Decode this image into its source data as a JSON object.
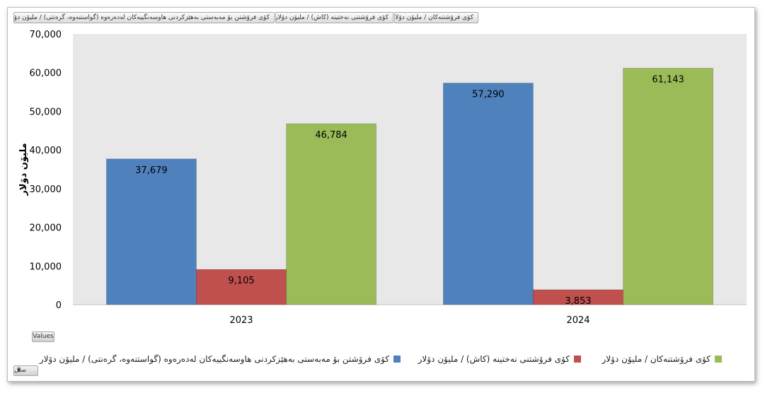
{
  "filter_buttons": [
    "کۆی فرۆشتنەکان / ملیۆن دۆلار",
    "کۆی فرۆشتنی نەختینە (کاش) / ملیۆن دۆلار",
    "کۆی فرۆشتن بۆ مەبەستی بەهێزکردنی هاوسەنگییەکان لەدەرەوە (گواستنەوە، گرەنتی) / ملیۆن دۆلار"
  ],
  "values_button": "Values",
  "axis_field_button": "سال",
  "chart_data": {
    "type": "bar",
    "categories": [
      "2023",
      "2024"
    ],
    "series": [
      {
        "name": "کۆی فرۆشتن بۆ مەبەستی بەهێزکردنی هاوسەنگییەکان لەدەرەوە (گواستنەوە، گرەنتی) / ملیۆن دۆلار",
        "color": "#4f81bd",
        "values": [
          37679,
          57290
        ]
      },
      {
        "name": "کۆی فرۆشتنی نەختینە (کاش) / ملیۆن دۆلار",
        "color": "#c0504d",
        "values": [
          9105,
          3853
        ]
      },
      {
        "name": "کۆی فرۆشتنەکان / ملیۆن دۆلار",
        "color": "#9bbb59",
        "values": [
          46784,
          61143
        ]
      }
    ],
    "data_labels": [
      [
        "37,679",
        "57,290"
      ],
      [
        "9,105",
        "3,853"
      ],
      [
        "46,784",
        "61,143"
      ]
    ],
    "ylabel": "ملیۆن دۆلار",
    "ylim": [
      0,
      70000
    ],
    "yticks": [
      "0",
      "10,000",
      "20,000",
      "30,000",
      "40,000",
      "50,000",
      "60,000",
      "70,000"
    ],
    "plot_background": "#e8e8e8",
    "grid": false,
    "legend_position": "bottom"
  }
}
